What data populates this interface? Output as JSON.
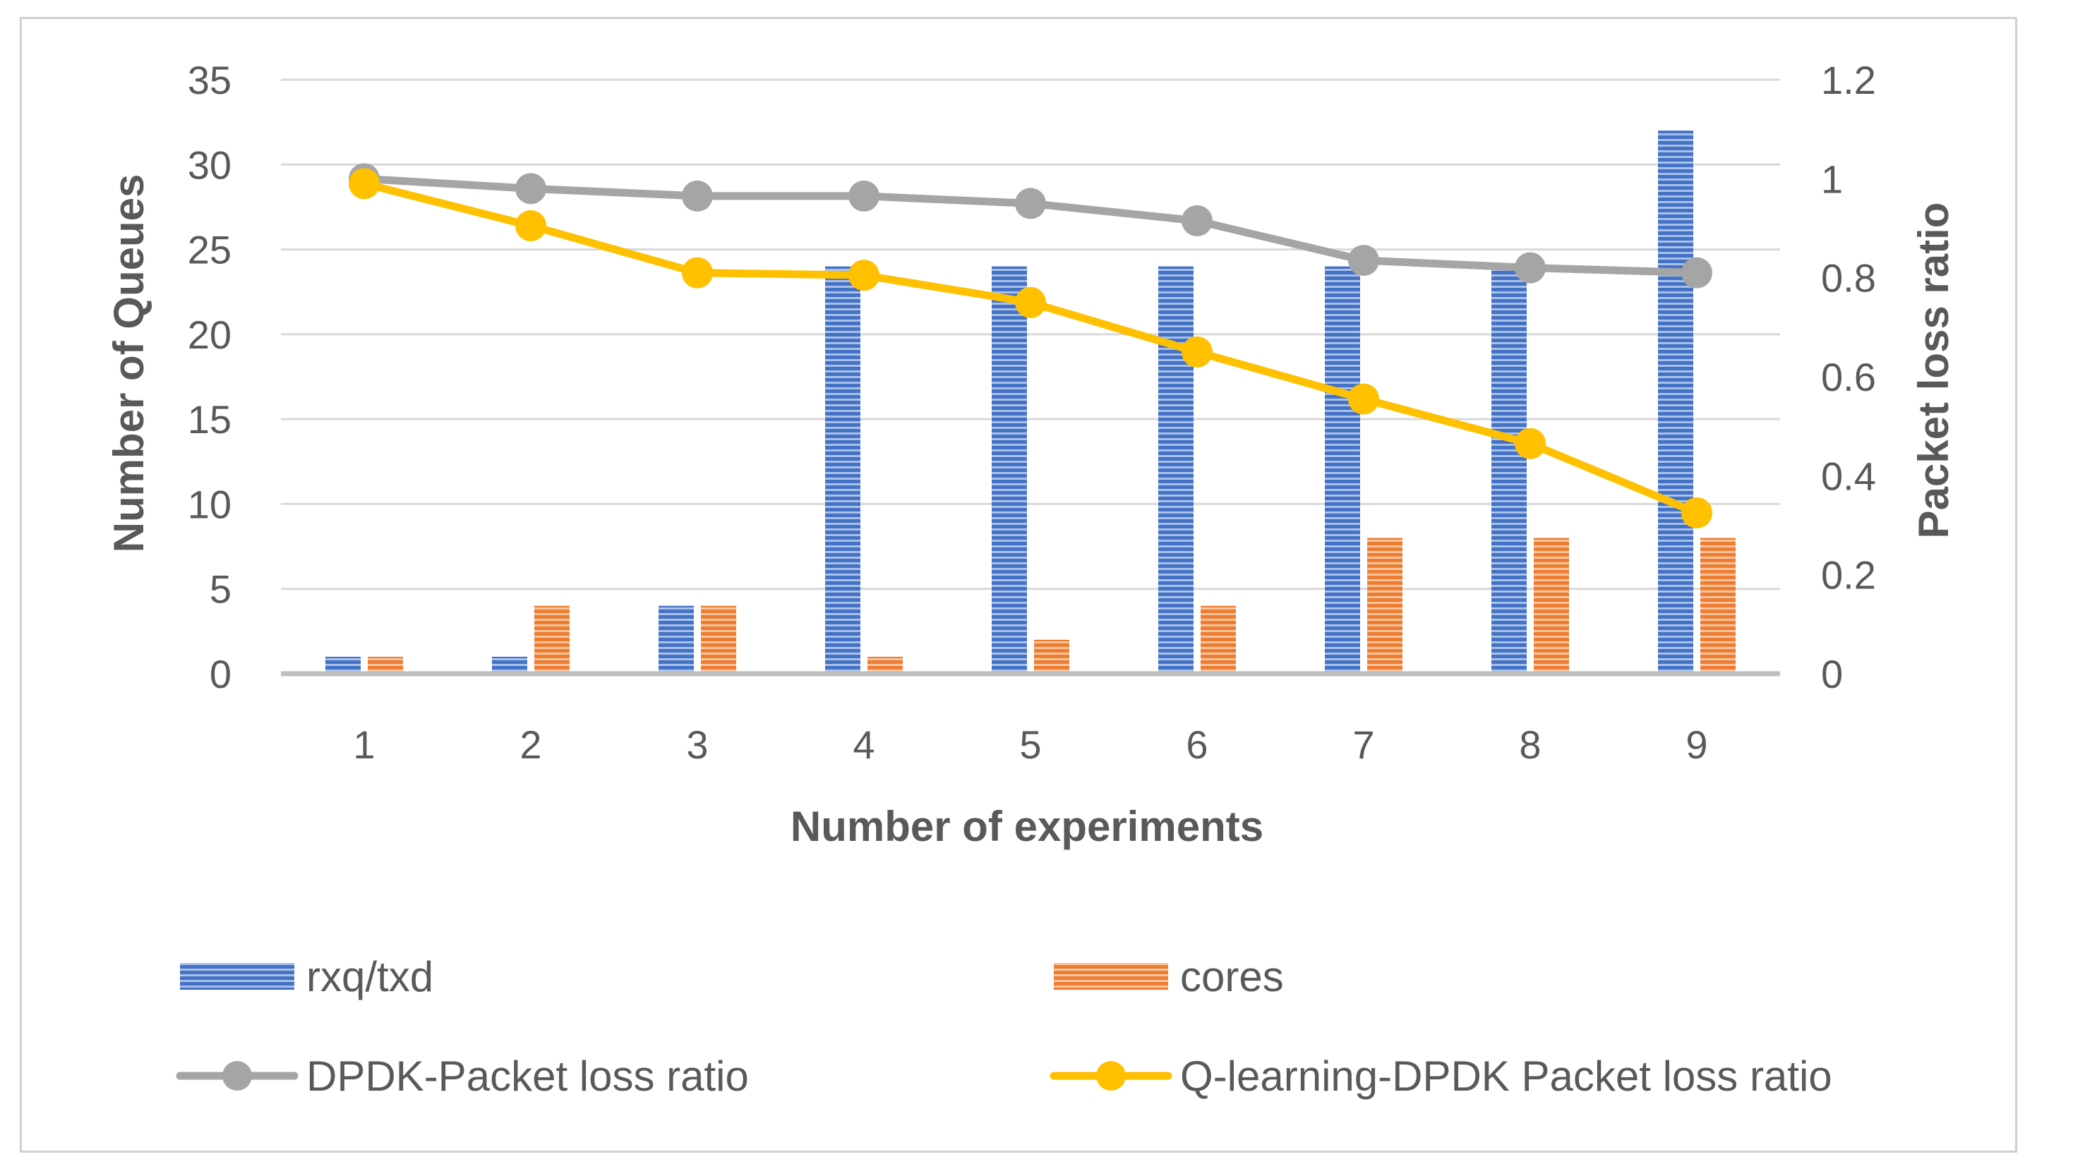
{
  "chart_data": {
    "type": "bar+line",
    "title": "",
    "xlabel": "Number of experiments",
    "ylabel_left": "Number of Queues",
    "ylabel_right": "Packet loss ratio",
    "categories": [
      "1",
      "2",
      "3",
      "4",
      "5",
      "6",
      "7",
      "8",
      "9"
    ],
    "ylim_left": [
      0,
      35
    ],
    "yticks_left": [
      "0",
      "5",
      "10",
      "15",
      "20",
      "25",
      "30",
      "35"
    ],
    "ylim_right": [
      0,
      1.2
    ],
    "yticks_right": [
      "0",
      "0.2",
      "0.4",
      "0.6",
      "0.8",
      "1",
      "1.2"
    ],
    "grid": true,
    "legend_position": "bottom",
    "bar_series": [
      {
        "name": "rxq/txd",
        "color": "#4472c4",
        "values": [
          1,
          1,
          4,
          24,
          24,
          24,
          24,
          24,
          32
        ]
      },
      {
        "name": "cores",
        "color": "#ed7d31",
        "values": [
          1,
          4,
          4,
          1,
          2,
          4,
          8,
          8,
          8
        ]
      }
    ],
    "line_series": [
      {
        "name": "DPDK-Packet loss ratio",
        "color": "#a5a5a5",
        "axis": "right",
        "values": [
          1.0,
          0.98,
          0.965,
          0.965,
          0.95,
          0.915,
          0.835,
          0.82,
          0.81
        ]
      },
      {
        "name": "Q-learning-DPDK Packet loss ratio",
        "color": "#ffc000",
        "axis": "right",
        "values": [
          0.99,
          0.905,
          0.81,
          0.805,
          0.75,
          0.65,
          0.555,
          0.465,
          0.325
        ]
      }
    ]
  }
}
